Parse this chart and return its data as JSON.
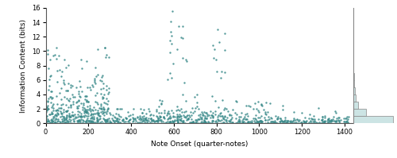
{
  "scatter_color": "#3a8a8a",
  "scatter_alpha": 0.85,
  "scatter_size": 3,
  "xlim": [
    0,
    1440
  ],
  "ylim": [
    0,
    16
  ],
  "xlabel": "Note Onset (quarter-notes)",
  "ylabel": "Information Content (bits)",
  "xticks": [
    0,
    200,
    400,
    600,
    800,
    1000,
    1200,
    1400
  ],
  "yticks": [
    0,
    2,
    4,
    6,
    8,
    10,
    12,
    14,
    16
  ],
  "hist_color": "#cce4e4",
  "hist_edge_color": "#888888",
  "background_color": "#ffffff",
  "random_seed": 42
}
